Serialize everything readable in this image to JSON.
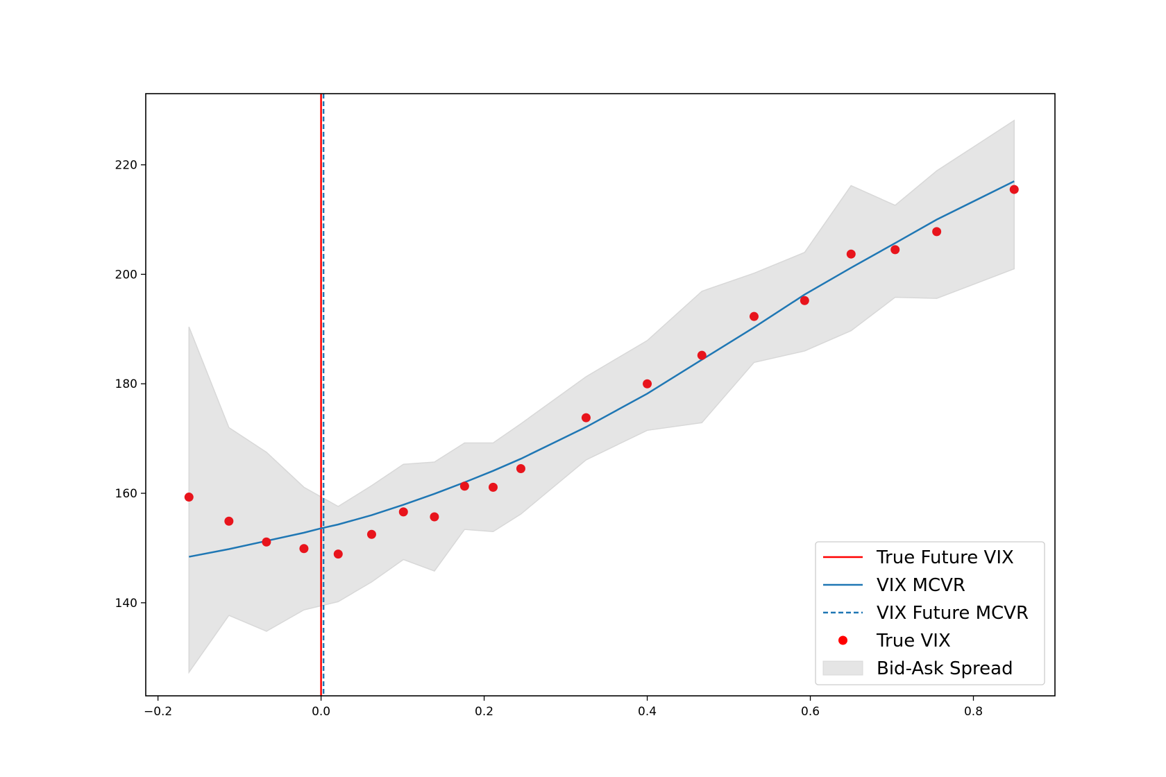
{
  "chart_data": {
    "type": "line",
    "title": "",
    "xlabel": "",
    "ylabel": "",
    "xlim": [
      -0.215,
      0.9
    ],
    "ylim": [
      123,
      233
    ],
    "xticks": [
      -0.2,
      0.0,
      0.2,
      0.4,
      0.6,
      0.8
    ],
    "xtick_labels": [
      "−0.2",
      "0.0",
      "0.2",
      "0.4",
      "0.6",
      "0.8"
    ],
    "yticks": [
      140,
      160,
      180,
      200,
      220
    ],
    "ytick_labels": [
      "140",
      "160",
      "180",
      "200",
      "220"
    ],
    "grid": false,
    "legend_position": "lower right",
    "vlines": [
      {
        "name": "True Future VIX",
        "x": 0.0,
        "color": "#ff0000",
        "style": "solid"
      },
      {
        "name": "VIX Future MCVR",
        "x": 0.003,
        "color": "#1f77b4",
        "style": "dashed"
      }
    ],
    "series": [
      {
        "name": "VIX MCVR",
        "kind": "line",
        "color": "#1f77b4",
        "x": [
          -0.162,
          -0.113,
          -0.067,
          -0.021,
          0.0,
          0.021,
          0.062,
          0.101,
          0.139,
          0.176,
          0.211,
          0.245,
          0.325,
          0.4,
          0.467,
          0.531,
          0.593,
          0.65,
          0.704,
          0.755,
          0.85
        ],
        "y": [
          148.4,
          149.8,
          151.3,
          152.8,
          153.6,
          154.3,
          156.0,
          157.9,
          159.9,
          162.0,
          164.1,
          166.3,
          172.1,
          178.2,
          184.4,
          190.3,
          196.3,
          201.2,
          205.7,
          210.0,
          217.0
        ]
      },
      {
        "name": "True VIX",
        "kind": "scatter",
        "color": "#e8141c",
        "x": [
          -0.162,
          -0.113,
          -0.067,
          -0.021,
          0.021,
          0.062,
          0.101,
          0.139,
          0.176,
          0.211,
          0.245,
          0.325,
          0.4,
          0.467,
          0.531,
          0.593,
          0.65,
          0.704,
          0.755,
          0.85
        ],
        "y": [
          159.3,
          154.9,
          151.1,
          149.9,
          148.9,
          152.5,
          156.6,
          155.7,
          161.3,
          161.1,
          164.5,
          173.8,
          180.0,
          185.2,
          192.3,
          195.2,
          203.7,
          204.5,
          207.8,
          215.5
        ]
      },
      {
        "name": "Bid-Ask Spread",
        "kind": "band",
        "color": "#e5e5e5",
        "x": [
          -0.162,
          -0.113,
          -0.067,
          -0.021,
          0.021,
          0.062,
          0.101,
          0.139,
          0.176,
          0.211,
          0.245,
          0.325,
          0.4,
          0.467,
          0.531,
          0.593,
          0.65,
          0.704,
          0.755,
          0.85
        ],
        "lower": [
          127.3,
          137.7,
          134.8,
          138.7,
          140.2,
          143.8,
          147.9,
          145.8,
          153.4,
          153.0,
          156.2,
          166.1,
          171.5,
          172.9,
          183.9,
          186.0,
          189.7,
          195.8,
          195.6,
          201.0
        ],
        "upper": [
          190.4,
          172.0,
          167.5,
          161.1,
          157.6,
          161.4,
          165.3,
          165.7,
          169.2,
          169.2,
          172.7,
          181.3,
          187.9,
          196.9,
          200.2,
          204.0,
          216.2,
          212.6,
          218.9,
          228.1
        ]
      }
    ],
    "legend": [
      {
        "label": "True Future VIX",
        "marker": "line",
        "color": "#ff0000"
      },
      {
        "label": "VIX MCVR",
        "marker": "line",
        "color": "#1f77b4"
      },
      {
        "label": "VIX Future MCVR",
        "marker": "dashed",
        "color": "#1f77b4"
      },
      {
        "label": "True VIX",
        "marker": "dot",
        "color": "#ff0000"
      },
      {
        "label": "Bid-Ask Spread",
        "marker": "patch",
        "color": "#e5e5e5"
      }
    ]
  }
}
